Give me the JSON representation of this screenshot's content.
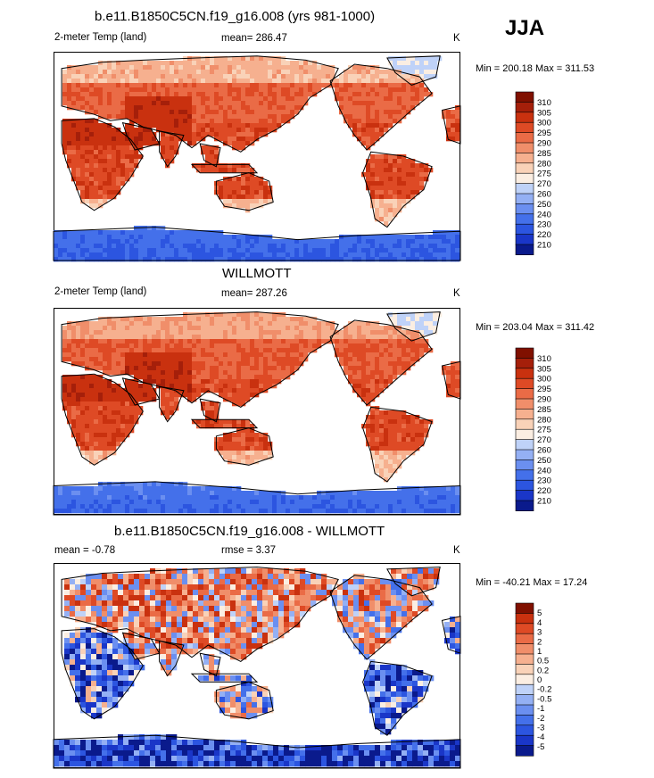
{
  "season": "JJA",
  "colors": {
    "warm_scale": [
      "#0a1a8c",
      "#1a36c8",
      "#2c55e0",
      "#4470ea",
      "#6b8ff0",
      "#94b0f4",
      "#bfd2f8",
      "#fbeee2",
      "#f9d2b8",
      "#f6b08f",
      "#f08e6a",
      "#ea6b46",
      "#de4a25",
      "#c9310f",
      "#a51f0a",
      "#801000"
    ],
    "diff_scale": [
      "#0a1a8c",
      "#1a36c8",
      "#2c55e0",
      "#4470ea",
      "#6b8ff0",
      "#94b0f4",
      "#bfd2f8",
      "#fbeee2",
      "#f9d2b8",
      "#f6b08f",
      "#f08e6a",
      "#ea6b46",
      "#de4a25",
      "#c9310f",
      "#801000"
    ]
  },
  "chart_data": [
    {
      "type": "heatmap",
      "title": "b.e11.B1850C5CN.f19_g16.008 (yrs 981-1000)",
      "left_label": "2-meter Temp (land)",
      "center_label": "mean= 286.47",
      "units": "K",
      "min_max": "Min = 200.18 Max = 311.53",
      "colorbar_ticks": [
        "310",
        "305",
        "300",
        "295",
        "290",
        "285",
        "280",
        "275",
        "270",
        "260",
        "250",
        "240",
        "230",
        "220",
        "210"
      ],
      "regions": {
        "tropics": 298,
        "midlat_n": 290,
        "high_n": 278,
        "greenland": 262,
        "antarctica": 225,
        "desert": 306
      }
    },
    {
      "type": "heatmap",
      "title": "WILLMOTT",
      "left_label": "2-meter Temp (land)",
      "center_label": "mean= 287.26",
      "units": "K",
      "min_max": "Min = 203.04 Max = 311.42",
      "colorbar_ticks": [
        "310",
        "305",
        "300",
        "295",
        "290",
        "285",
        "280",
        "275",
        "270",
        "260",
        "250",
        "240",
        "230",
        "220",
        "210"
      ],
      "regions": {
        "tropics": 298,
        "midlat_n": 291,
        "high_n": 280,
        "greenland": 263,
        "antarctica": 228,
        "desert": 306
      }
    },
    {
      "type": "heatmap",
      "title": "b.e11.B1850C5CN.f19_g16.008 - WILLMOTT",
      "left_label": "mean =  -0.78",
      "center_label": "rmse =   3.37",
      "units": "K",
      "min_max": "Min = -40.21 Max =  17.24",
      "colorbar_ticks": [
        "5",
        "4",
        "3",
        "2",
        "1",
        "0.5",
        "0.2",
        "0",
        "-0.2",
        "-0.5",
        "-1",
        "-2",
        "-3",
        "-4",
        "-5"
      ],
      "regions": {
        "eurasia": 1.5,
        "africa": -2.5,
        "south_america": -3,
        "north_america": 0.8,
        "antarctica": -4
      }
    }
  ]
}
